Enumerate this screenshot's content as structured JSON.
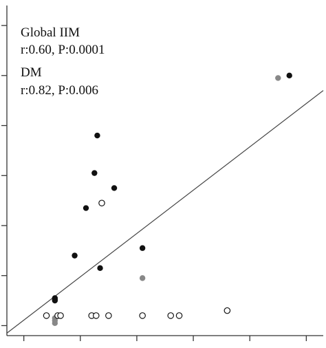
{
  "chart_data": {
    "type": "scatter",
    "title": "",
    "xlabel": "",
    "ylabel": "",
    "xlim": [
      0,
      5.6
    ],
    "ylim": [
      0,
      6.6
    ],
    "x_ticks": [
      0.3,
      1.3,
      2.3,
      3.3,
      4.3,
      5.3
    ],
    "y_ticks": [
      0.2,
      1.2,
      2.2,
      3.2,
      4.2,
      5.2,
      6.2
    ],
    "grid": false,
    "annotations": [
      {
        "lines": [
          "Global IIM",
          "r:0.60, P:0.0001"
        ]
      },
      {
        "lines": [
          "DM",
          "r:0.82, P:0.006"
        ]
      }
    ],
    "fit_line": {
      "x": [
        0,
        5.6
      ],
      "y": [
        0.05,
        4.9
      ]
    },
    "series": [
      {
        "marker": "filled",
        "color": "#111111",
        "points": [
          {
            "x": 0.85,
            "y": 0.75
          },
          {
            "x": 0.85,
            "y": 0.72
          },
          {
            "x": 0.85,
            "y": 0.7
          },
          {
            "x": 1.2,
            "y": 1.6
          },
          {
            "x": 1.4,
            "y": 2.55
          },
          {
            "x": 1.6,
            "y": 4.0
          },
          {
            "x": 1.55,
            "y": 3.25
          },
          {
            "x": 1.9,
            "y": 2.95
          },
          {
            "x": 1.65,
            "y": 1.35
          },
          {
            "x": 2.4,
            "y": 1.75
          },
          {
            "x": 5.0,
            "y": 5.2
          }
        ]
      },
      {
        "marker": "gray",
        "color": "#888888",
        "points": [
          {
            "x": 0.85,
            "y": 0.35
          },
          {
            "x": 0.85,
            "y": 0.3
          },
          {
            "x": 0.85,
            "y": 0.25
          },
          {
            "x": 1.5,
            "y": 0.4
          },
          {
            "x": 1.52,
            "y": 0.4
          },
          {
            "x": 2.4,
            "y": 1.15
          },
          {
            "x": 4.8,
            "y": 5.15
          }
        ]
      },
      {
        "marker": "open",
        "color": "#111111",
        "points": [
          {
            "x": 0.7,
            "y": 0.4
          },
          {
            "x": 0.9,
            "y": 0.4
          },
          {
            "x": 0.95,
            "y": 0.4
          },
          {
            "x": 1.5,
            "y": 0.4
          },
          {
            "x": 1.58,
            "y": 0.4
          },
          {
            "x": 1.8,
            "y": 0.4
          },
          {
            "x": 2.4,
            "y": 0.4
          },
          {
            "x": 2.9,
            "y": 0.4
          },
          {
            "x": 3.05,
            "y": 0.4
          },
          {
            "x": 3.9,
            "y": 0.5
          },
          {
            "x": 1.68,
            "y": 2.65
          }
        ]
      }
    ]
  }
}
